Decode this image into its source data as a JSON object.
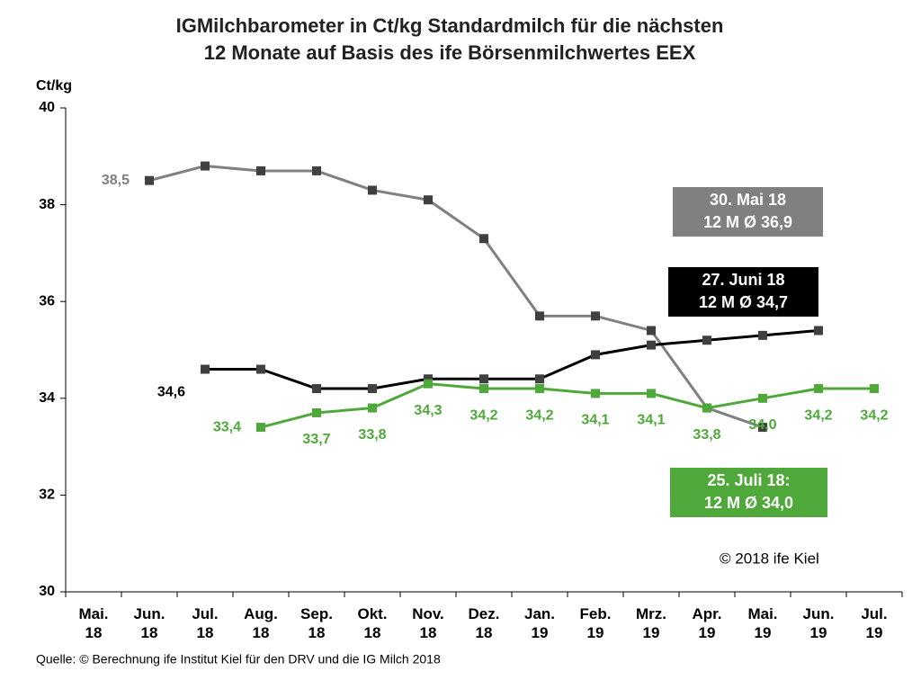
{
  "chart_data": {
    "type": "line",
    "title": "IGMilchbarometer in Ct/kg Standardmilch für die nächsten\n12 Monate auf Basis des ife Börsenmilchwertes EEX",
    "y_label": "Ct/kg",
    "categories": [
      "Mai.\n18",
      "Jun.\n18",
      "Jul.\n18",
      "Aug.\n18",
      "Sep.\n18",
      "Okt.\n18",
      "Nov.\n18",
      "Dez.\n18",
      "Jan.\n19",
      "Feb.\n19",
      "Mrz.\n19",
      "Apr.\n19",
      "Mai.\n19",
      "Jun.\n19",
      "Jul.\n19"
    ],
    "ylim": [
      30,
      40
    ],
    "yticks": [
      30,
      32,
      34,
      36,
      38,
      40
    ],
    "grid": false,
    "series": [
      {
        "name": "30. Mai 18",
        "summary": "12 M Ø 36,9",
        "color": "#808080",
        "values": [
          null,
          38.5,
          38.8,
          38.7,
          38.7,
          38.3,
          38.1,
          37.3,
          35.7,
          35.7,
          35.4,
          33.8,
          33.4,
          null,
          null
        ],
        "value_labels": [
          null,
          "38,5",
          null,
          null,
          null,
          null,
          null,
          null,
          null,
          null,
          null,
          null,
          null,
          null,
          null
        ]
      },
      {
        "name": "27. Juni 18",
        "summary": "12 M Ø 34,7",
        "color": "#000000",
        "values": [
          null,
          null,
          34.6,
          34.6,
          34.2,
          34.2,
          34.4,
          34.4,
          34.4,
          34.9,
          35.1,
          35.2,
          35.3,
          35.4,
          null
        ],
        "value_labels": [
          null,
          null,
          "34,6",
          null,
          null,
          null,
          null,
          null,
          null,
          null,
          null,
          null,
          null,
          null,
          null
        ]
      },
      {
        "name": "25. Juli 18:",
        "summary": "12 M Ø 34,0",
        "color": "#4ea83a",
        "values": [
          null,
          null,
          null,
          33.4,
          33.7,
          33.8,
          34.3,
          34.2,
          34.2,
          34.1,
          34.1,
          33.8,
          34.0,
          34.2,
          34.2
        ],
        "value_labels": [
          null,
          null,
          null,
          "33,4",
          "33,7",
          "33,8",
          "34,3",
          "34,2",
          "34,2",
          "34,1",
          "34,1",
          "33,8",
          "34,0",
          "34,2",
          "34,2"
        ]
      }
    ],
    "copyright": "© 2018 ife Kiel",
    "source": "Quelle: © Berechnung  ife Institut Kiel für den DRV und die IG Milch 2018"
  }
}
